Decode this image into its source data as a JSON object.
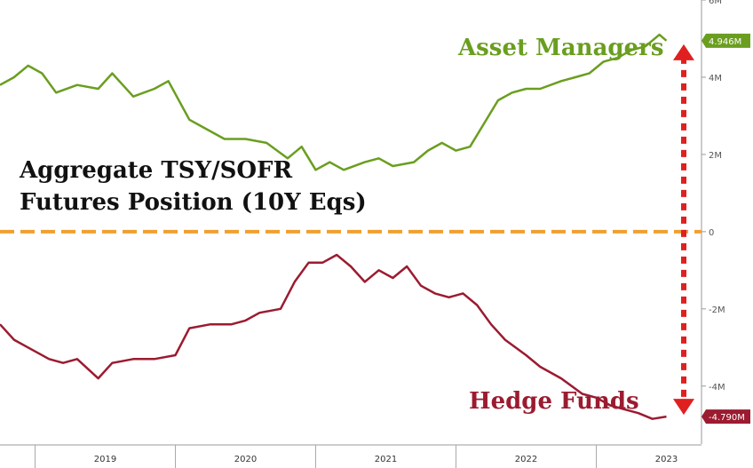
{
  "chart_data": {
    "type": "line",
    "title_lines": [
      "Aggregate TSY/SOFR",
      "Futures Position (10Y Eqs)"
    ],
    "xlabel": "",
    "ylabel": "",
    "x_ticks": [
      "2019",
      "2020",
      "2021",
      "2022",
      "2023"
    ],
    "x_range": [
      2018.75,
      2023.75
    ],
    "y_ticks": [
      "6M",
      "4M",
      "2M",
      "0",
      "-2M",
      "-4M"
    ],
    "ylim": [
      -5.5,
      6.0
    ],
    "y_axis_side": "right",
    "grid": false,
    "zero_line": {
      "value": 0,
      "color": "#f0a030",
      "style": "dashed"
    },
    "gap_arrow": {
      "from": 4.946,
      "to": -4.79,
      "color": "#e02020",
      "style": "dotted"
    },
    "series": [
      {
        "name": "Asset Managers",
        "color": "#6a9e1f",
        "last_value_label": "4.946M",
        "x": [
          2018.75,
          2018.85,
          2018.95,
          2019.05,
          2019.15,
          2019.3,
          2019.45,
          2019.55,
          2019.7,
          2019.85,
          2019.95,
          2020.1,
          2020.2,
          2020.35,
          2020.5,
          2020.65,
          2020.8,
          2020.9,
          2021.0,
          2021.1,
          2021.2,
          2021.35,
          2021.45,
          2021.55,
          2021.7,
          2021.8,
          2021.9,
          2022.0,
          2022.1,
          2022.2,
          2022.3,
          2022.4,
          2022.5,
          2022.6,
          2022.75,
          2022.85,
          2022.95,
          2023.05,
          2023.15,
          2023.25,
          2023.35,
          2023.45,
          2023.5
        ],
        "values": [
          3.8,
          4.0,
          4.3,
          4.1,
          3.6,
          3.8,
          3.7,
          4.1,
          3.5,
          3.7,
          3.9,
          2.9,
          2.7,
          2.4,
          2.4,
          2.3,
          1.9,
          2.2,
          1.6,
          1.8,
          1.6,
          1.8,
          1.9,
          1.7,
          1.8,
          2.1,
          2.3,
          2.1,
          2.2,
          2.8,
          3.4,
          3.6,
          3.7,
          3.7,
          3.9,
          4.0,
          4.1,
          4.4,
          4.5,
          4.7,
          4.8,
          5.1,
          4.946
        ]
      },
      {
        "name": "Hedge Funds",
        "color": "#9b1b30",
        "last_value_label": "-4.790M",
        "x": [
          2018.75,
          2018.85,
          2018.95,
          2019.1,
          2019.2,
          2019.3,
          2019.45,
          2019.55,
          2019.7,
          2019.85,
          2020.0,
          2020.1,
          2020.25,
          2020.4,
          2020.5,
          2020.6,
          2020.75,
          2020.85,
          2020.95,
          2021.05,
          2021.15,
          2021.25,
          2021.35,
          2021.45,
          2021.55,
          2021.65,
          2021.75,
          2021.85,
          2021.95,
          2022.05,
          2022.15,
          2022.25,
          2022.35,
          2022.5,
          2022.6,
          2022.75,
          2022.9,
          2023.0,
          2023.1,
          2023.2,
          2023.3,
          2023.4,
          2023.5
        ],
        "values": [
          -2.4,
          -2.8,
          -3.0,
          -3.3,
          -3.4,
          -3.3,
          -3.8,
          -3.4,
          -3.3,
          -3.3,
          -3.2,
          -2.5,
          -2.4,
          -2.4,
          -2.3,
          -2.1,
          -2.0,
          -1.3,
          -0.8,
          -0.8,
          -0.6,
          -0.9,
          -1.3,
          -1.0,
          -1.2,
          -0.9,
          -1.4,
          -1.6,
          -1.7,
          -1.6,
          -1.9,
          -2.4,
          -2.8,
          -3.2,
          -3.5,
          -3.8,
          -4.2,
          -4.3,
          -4.5,
          -4.6,
          -4.7,
          -4.85,
          -4.79
        ]
      }
    ]
  }
}
